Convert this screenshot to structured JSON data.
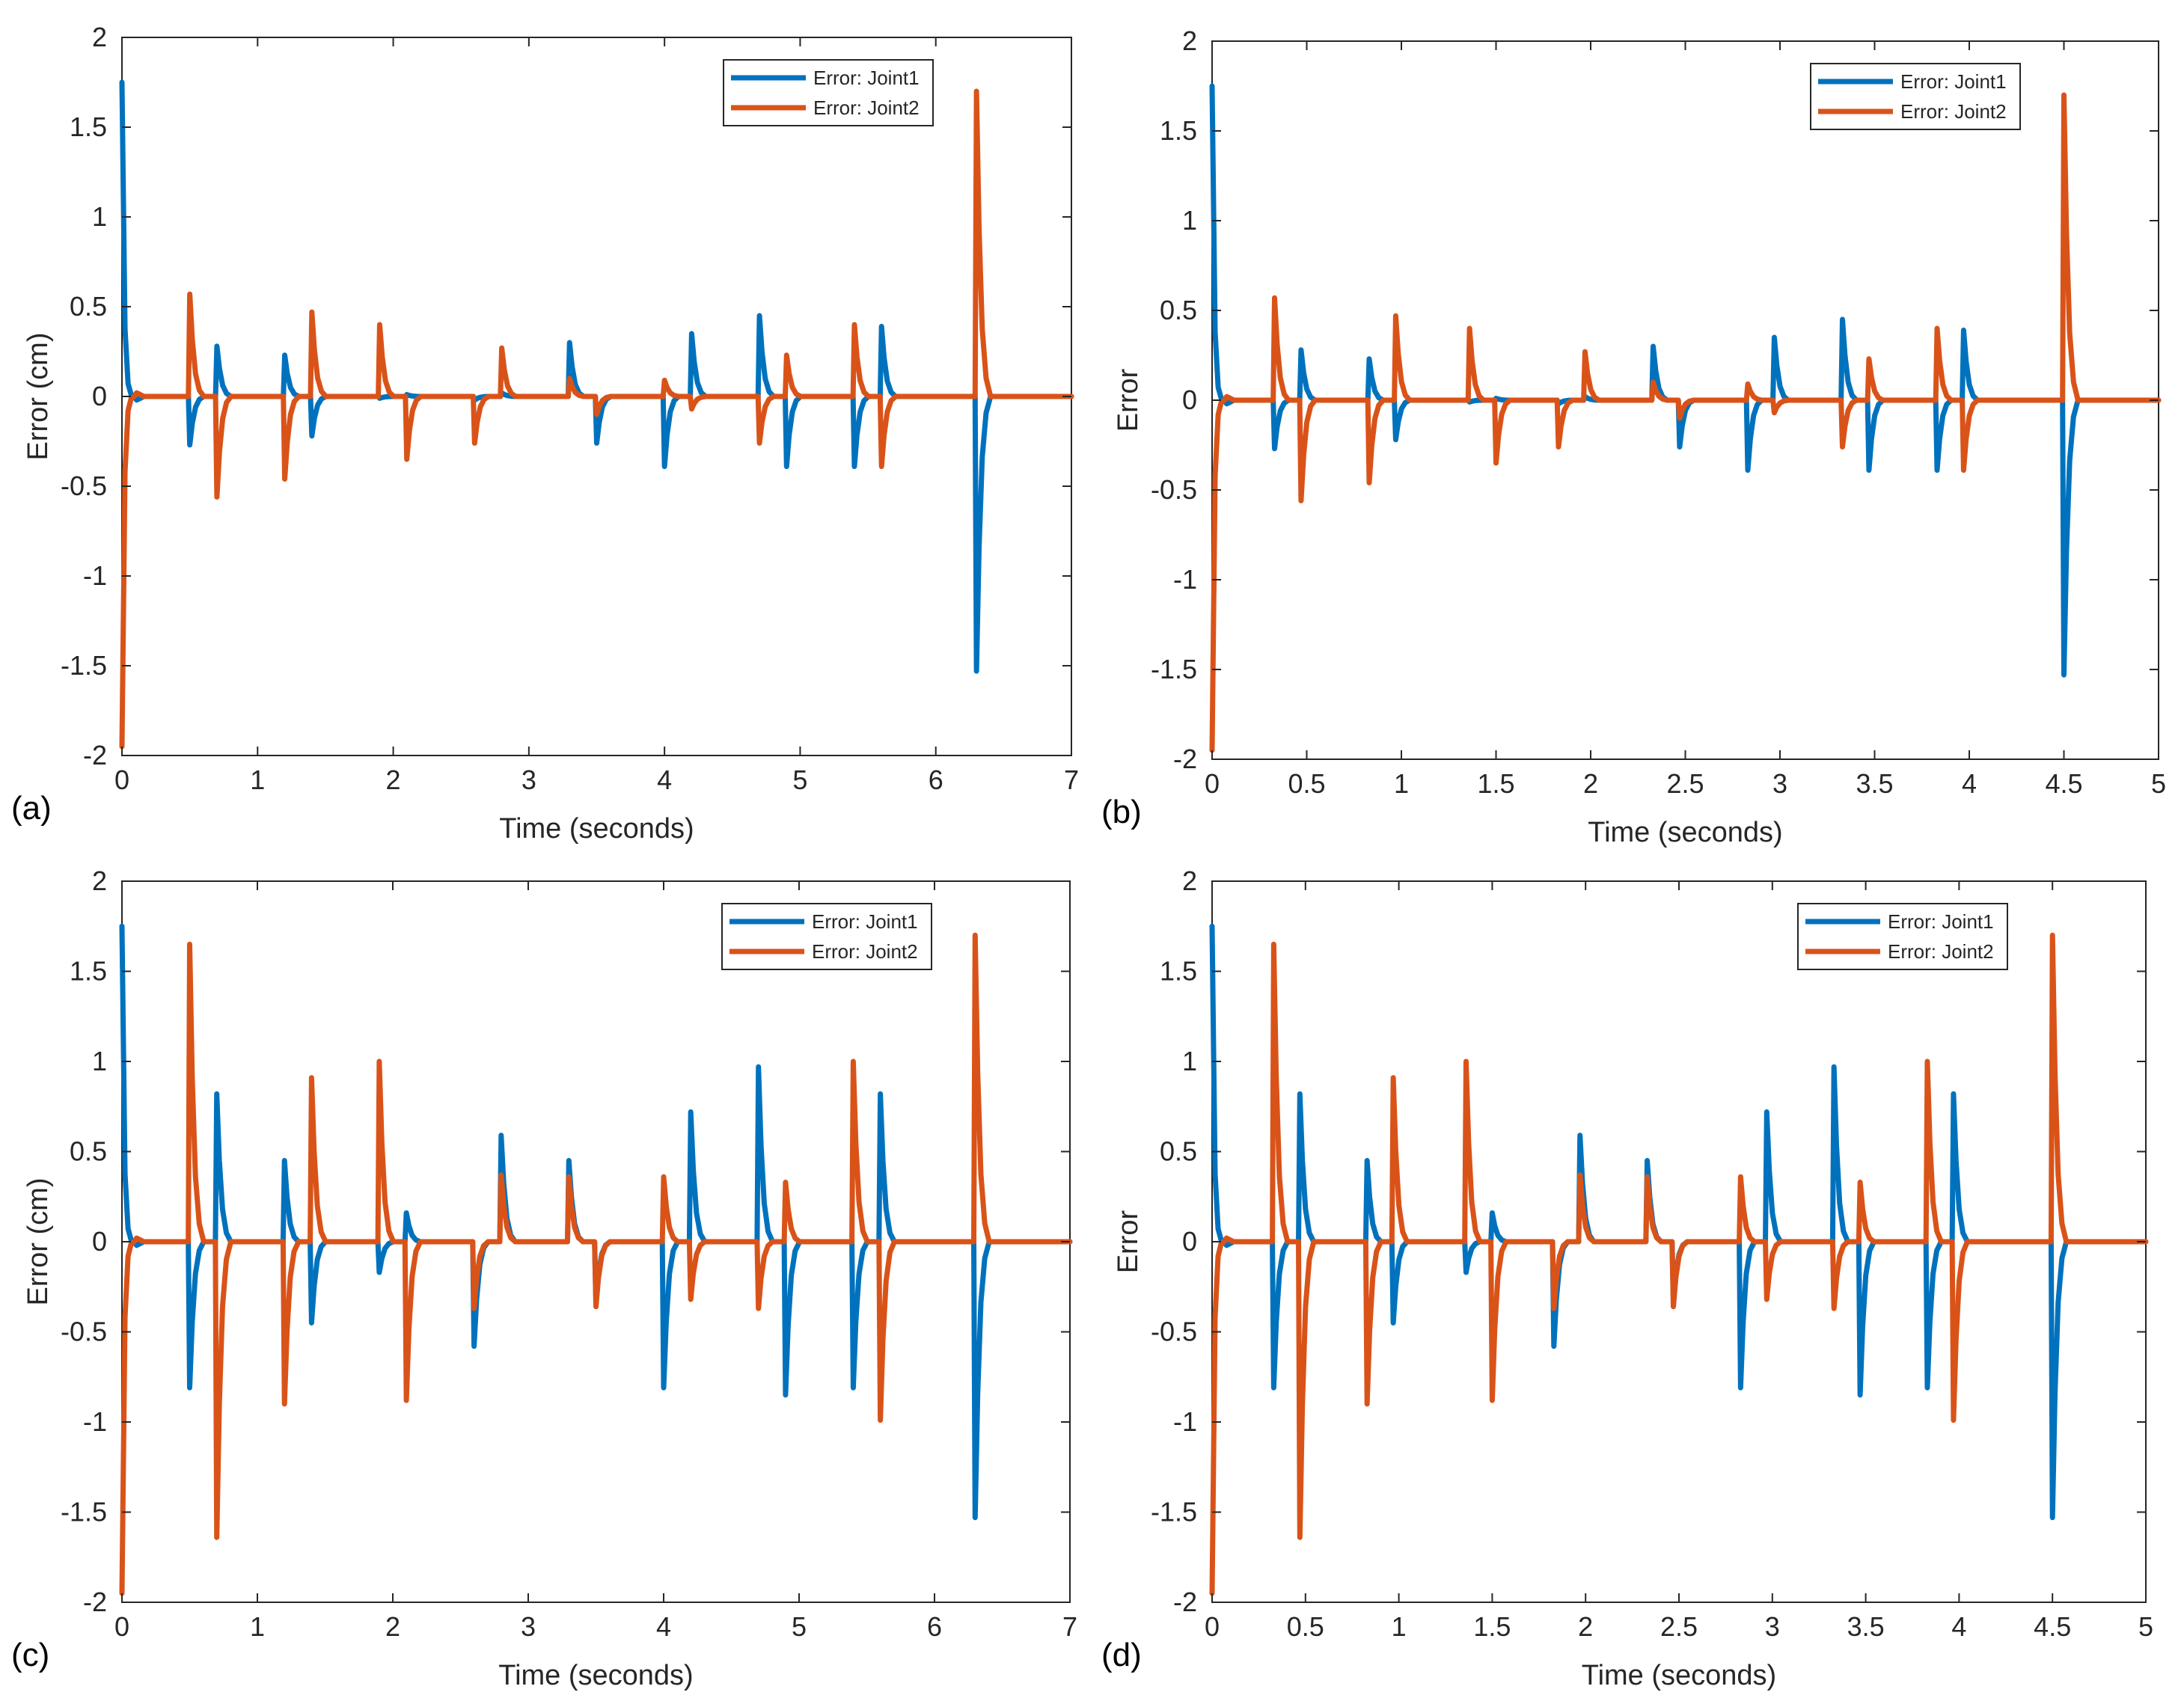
{
  "colors": {
    "joint1": "#0072BD",
    "joint2": "#D95319",
    "axis": "#262626"
  },
  "chart_data": [
    {
      "type": "line",
      "panel_label": "(a)",
      "xlabel": "Time (seconds)",
      "ylabel": "Error  (cm)",
      "xlim": [
        0,
        7
      ],
      "ylim": [
        -2,
        2
      ],
      "xticks": [
        0,
        1,
        2,
        3,
        4,
        5,
        6,
        7
      ],
      "xtick_labels": [
        "0",
        "1",
        "2",
        "3",
        "4",
        "5",
        "6",
        "7"
      ],
      "yticks": [
        -2,
        -1.5,
        -1,
        -0.5,
        0,
        0.5,
        1,
        1.5,
        2
      ],
      "ytick_labels": [
        "-2",
        "-1.5",
        "-1",
        "-0.5",
        "0",
        "0.5",
        "1",
        "1.5",
        "2"
      ],
      "legend": [
        "Error: Joint1",
        "Error: Joint2"
      ],
      "legend_position": "top-right",
      "series": [
        {
          "name": "Error: Joint1",
          "color": "#0072BD",
          "start": 1.75,
          "spikes": [
            [
              0.5,
              -0.27
            ],
            [
              0.7,
              0.28
            ],
            [
              1.2,
              0.23
            ],
            [
              1.4,
              -0.22
            ],
            [
              1.9,
              -0.01
            ],
            [
              2.1,
              0.01
            ],
            [
              2.6,
              -0.02
            ],
            [
              2.8,
              0.02
            ],
            [
              3.3,
              0.3
            ],
            [
              3.5,
              -0.26
            ],
            [
              4.0,
              -0.39
            ],
            [
              4.2,
              0.35
            ],
            [
              4.7,
              0.45
            ],
            [
              4.9,
              -0.39
            ],
            [
              5.4,
              -0.39
            ],
            [
              5.6,
              0.39
            ],
            [
              6.3,
              -1.53
            ]
          ]
        },
        {
          "name": "Error: Joint2",
          "color": "#D95319",
          "start": -1.95,
          "spikes": [
            [
              0.5,
              0.57
            ],
            [
              0.7,
              -0.56
            ],
            [
              1.2,
              -0.46
            ],
            [
              1.4,
              0.47
            ],
            [
              1.9,
              0.4
            ],
            [
              2.1,
              -0.35
            ],
            [
              2.6,
              -0.26
            ],
            [
              2.8,
              0.27
            ],
            [
              3.3,
              0.1
            ],
            [
              3.5,
              -0.1
            ],
            [
              4.0,
              0.09
            ],
            [
              4.2,
              -0.07
            ],
            [
              4.7,
              -0.26
            ],
            [
              4.9,
              0.23
            ],
            [
              5.4,
              0.4
            ],
            [
              5.6,
              -0.39
            ],
            [
              6.3,
              1.7
            ]
          ]
        }
      ]
    },
    {
      "type": "line",
      "panel_label": "(b)",
      "xlabel": "Time (seconds)",
      "ylabel": "Error",
      "xlim": [
        0,
        5
      ],
      "ylim": [
        -2,
        2
      ],
      "xticks": [
        0,
        0.5,
        1,
        1.5,
        2,
        2.5,
        3,
        3.5,
        4,
        4.5,
        5
      ],
      "xtick_labels": [
        "0",
        "0.5",
        "1",
        "1.5",
        "2",
        "2.5",
        "3",
        "3.5",
        "4",
        "4.5",
        "5"
      ],
      "yticks": [
        -2,
        -1.5,
        -1,
        -0.5,
        0,
        0.5,
        1,
        1.5,
        2
      ],
      "ytick_labels": [
        "-2",
        "-1.5",
        "-1",
        "-0.5",
        "0",
        "0.5",
        "1",
        "1.5",
        "2"
      ],
      "legend": [
        "Error: Joint1",
        "Error: Joint2"
      ],
      "legend_position": "top-right",
      "series": [
        {
          "name": "Error: Joint1",
          "color": "#0072BD",
          "start": 1.75,
          "spikes": [
            [
              0.33,
              -0.27
            ],
            [
              0.47,
              0.28
            ],
            [
              0.83,
              0.23
            ],
            [
              0.97,
              -0.22
            ],
            [
              1.36,
              -0.01
            ],
            [
              1.5,
              0.01
            ],
            [
              1.83,
              -0.02
            ],
            [
              1.97,
              0.02
            ],
            [
              2.33,
              0.3
            ],
            [
              2.47,
              -0.26
            ],
            [
              2.83,
              -0.39
            ],
            [
              2.97,
              0.35
            ],
            [
              3.33,
              0.45
            ],
            [
              3.47,
              -0.39
            ],
            [
              3.83,
              -0.39
            ],
            [
              3.97,
              0.39
            ],
            [
              4.5,
              -1.53
            ]
          ]
        },
        {
          "name": "Error: Joint2",
          "color": "#D95319",
          "start": -1.95,
          "spikes": [
            [
              0.33,
              0.57
            ],
            [
              0.47,
              -0.56
            ],
            [
              0.83,
              -0.46
            ],
            [
              0.97,
              0.47
            ],
            [
              1.36,
              0.4
            ],
            [
              1.5,
              -0.35
            ],
            [
              1.83,
              -0.26
            ],
            [
              1.97,
              0.27
            ],
            [
              2.33,
              0.1
            ],
            [
              2.47,
              -0.1
            ],
            [
              2.83,
              0.09
            ],
            [
              2.97,
              -0.07
            ],
            [
              3.33,
              -0.26
            ],
            [
              3.47,
              0.23
            ],
            [
              3.83,
              0.4
            ],
            [
              3.97,
              -0.39
            ],
            [
              4.5,
              1.7
            ]
          ]
        }
      ]
    },
    {
      "type": "line",
      "panel_label": "(c)",
      "xlabel": "Time (seconds)",
      "ylabel": "Error  (cm)",
      "xlim": [
        0,
        7
      ],
      "ylim": [
        -2,
        2
      ],
      "xticks": [
        0,
        1,
        2,
        3,
        4,
        5,
        6,
        7
      ],
      "xtick_labels": [
        "0",
        "1",
        "2",
        "3",
        "4",
        "5",
        "6",
        "7"
      ],
      "yticks": [
        -2,
        -1.5,
        -1,
        -0.5,
        0,
        0.5,
        1,
        1.5,
        2
      ],
      "ytick_labels": [
        "-2",
        "-1.5",
        "-1",
        "-0.5",
        "0",
        "0.5",
        "1",
        "1.5",
        "2"
      ],
      "legend": [
        "Error: Joint1",
        "Error: Joint2"
      ],
      "legend_position": "top-right",
      "series": [
        {
          "name": "Error: Joint1",
          "color": "#0072BD",
          "start": 1.75,
          "spikes": [
            [
              0.5,
              -0.81
            ],
            [
              0.7,
              0.82
            ],
            [
              1.2,
              0.45
            ],
            [
              1.4,
              -0.45
            ],
            [
              1.9,
              -0.17
            ],
            [
              2.1,
              0.16
            ],
            [
              2.6,
              -0.58
            ],
            [
              2.8,
              0.59
            ],
            [
              3.3,
              0.45
            ],
            [
              3.5,
              -0.32
            ],
            [
              4.0,
              -0.81
            ],
            [
              4.2,
              0.72
            ],
            [
              4.7,
              0.97
            ],
            [
              4.9,
              -0.85
            ],
            [
              5.4,
              -0.81
            ],
            [
              5.6,
              0.82
            ],
            [
              6.3,
              -1.53
            ]
          ]
        },
        {
          "name": "Error: Joint2",
          "color": "#D95319",
          "start": -1.95,
          "spikes": [
            [
              0.5,
              1.65
            ],
            [
              0.7,
              -1.64
            ],
            [
              1.2,
              -0.9
            ],
            [
              1.4,
              0.91
            ],
            [
              1.9,
              1.0
            ],
            [
              2.1,
              -0.88
            ],
            [
              2.6,
              -0.37
            ],
            [
              2.8,
              0.37
            ],
            [
              3.3,
              0.36
            ],
            [
              3.5,
              -0.36
            ],
            [
              4.0,
              0.36
            ],
            [
              4.2,
              -0.32
            ],
            [
              4.7,
              -0.37
            ],
            [
              4.9,
              0.33
            ],
            [
              5.4,
              1.0
            ],
            [
              5.6,
              -0.99
            ],
            [
              6.3,
              1.7
            ]
          ]
        }
      ]
    },
    {
      "type": "line",
      "panel_label": "(d)",
      "xlabel": "Time (seconds)",
      "ylabel": "Error",
      "xlim": [
        0,
        5
      ],
      "ylim": [
        -2,
        2
      ],
      "xticks": [
        0,
        0.5,
        1,
        1.5,
        2,
        2.5,
        3,
        3.5,
        4,
        4.5,
        5
      ],
      "xtick_labels": [
        "0",
        "0.5",
        "1",
        "1.5",
        "2",
        "2.5",
        "3",
        "3.5",
        "4",
        "4.5",
        "5"
      ],
      "yticks": [
        -2,
        -1.5,
        -1,
        -0.5,
        0,
        0.5,
        1,
        1.5,
        2
      ],
      "ytick_labels": [
        "-2",
        "-1.5",
        "-1",
        "-0.5",
        "0",
        "0.5",
        "1",
        "1.5",
        "2"
      ],
      "legend": [
        "Error: Joint1",
        "Error: Joint2"
      ],
      "legend_position": "top-right",
      "series": [
        {
          "name": "Error: Joint1",
          "color": "#0072BD",
          "start": 1.75,
          "spikes": [
            [
              0.33,
              -0.81
            ],
            [
              0.47,
              0.82
            ],
            [
              0.83,
              0.45
            ],
            [
              0.97,
              -0.45
            ],
            [
              1.36,
              -0.17
            ],
            [
              1.5,
              0.16
            ],
            [
              1.83,
              -0.58
            ],
            [
              1.97,
              0.59
            ],
            [
              2.33,
              0.45
            ],
            [
              2.47,
              -0.32
            ],
            [
              2.83,
              -0.81
            ],
            [
              2.97,
              0.72
            ],
            [
              3.33,
              0.97
            ],
            [
              3.47,
              -0.85
            ],
            [
              3.83,
              -0.81
            ],
            [
              3.97,
              0.82
            ],
            [
              4.5,
              -1.53
            ]
          ]
        },
        {
          "name": "Error: Joint2",
          "color": "#D95319",
          "start": -1.95,
          "spikes": [
            [
              0.33,
              1.65
            ],
            [
              0.47,
              -1.64
            ],
            [
              0.83,
              -0.9
            ],
            [
              0.97,
              0.91
            ],
            [
              1.36,
              1.0
            ],
            [
              1.5,
              -0.88
            ],
            [
              1.83,
              -0.37
            ],
            [
              1.97,
              0.37
            ],
            [
              2.33,
              0.36
            ],
            [
              2.47,
              -0.36
            ],
            [
              2.83,
              0.36
            ],
            [
              2.97,
              -0.32
            ],
            [
              3.33,
              -0.37
            ],
            [
              3.47,
              0.33
            ],
            [
              3.83,
              1.0
            ],
            [
              3.97,
              -0.99
            ],
            [
              4.5,
              1.7
            ]
          ]
        }
      ]
    }
  ]
}
